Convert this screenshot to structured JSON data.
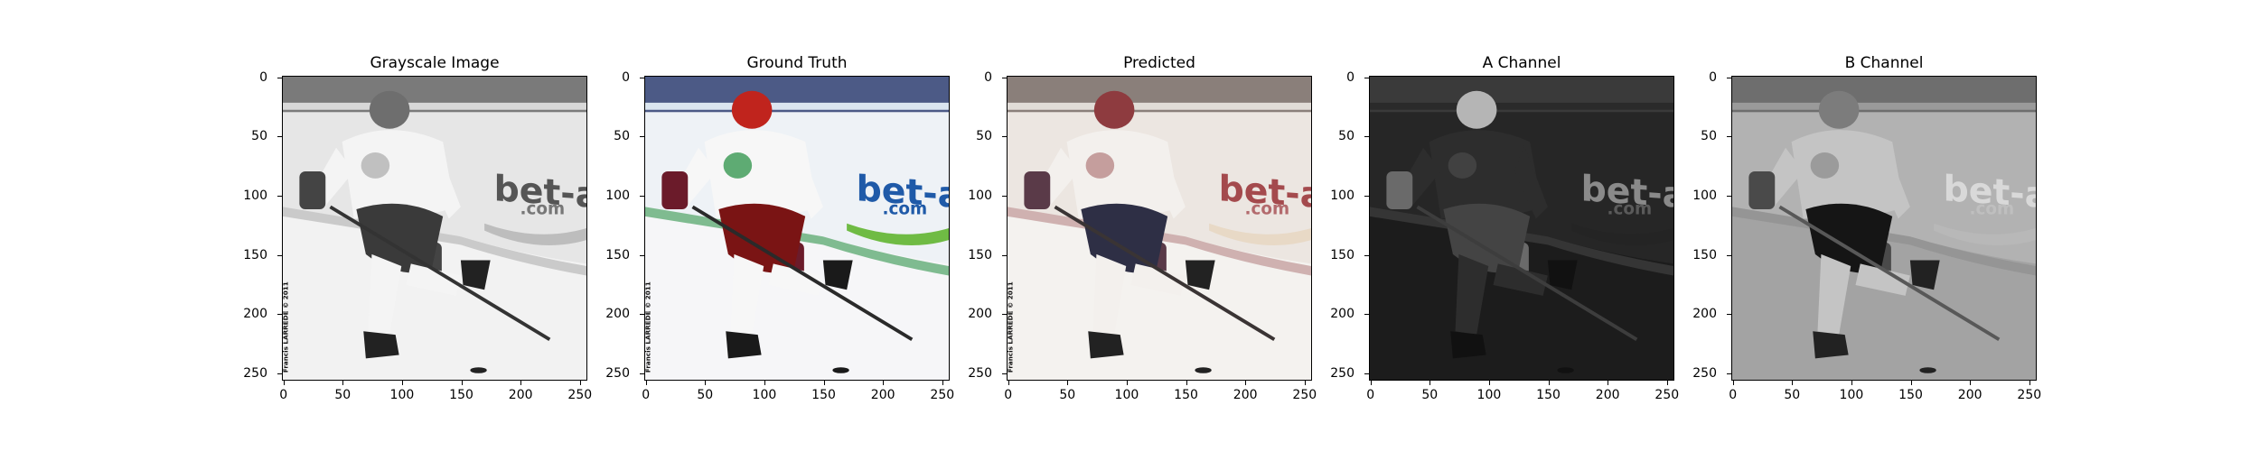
{
  "figure": {
    "panels": [
      {
        "id": "gray",
        "title": "Grayscale Image",
        "mode": "gray"
      },
      {
        "id": "gt",
        "title": "Ground Truth",
        "mode": "color"
      },
      {
        "id": "pred",
        "title": "Predicted",
        "mode": "pred"
      },
      {
        "id": "a",
        "title": "A Channel",
        "mode": "achan"
      },
      {
        "id": "b",
        "title": "B Channel",
        "mode": "bchan"
      }
    ],
    "y_ticks": [
      "0",
      "50",
      "100",
      "150",
      "200",
      "250"
    ],
    "x_ticks": [
      "0",
      "50",
      "100",
      "150",
      "200",
      "250"
    ],
    "axis_range": [
      0,
      256
    ],
    "board_text": "bet-at-ho",
    "board_sub": ".com",
    "watermark": "Francis LARREDE © 2011"
  }
}
